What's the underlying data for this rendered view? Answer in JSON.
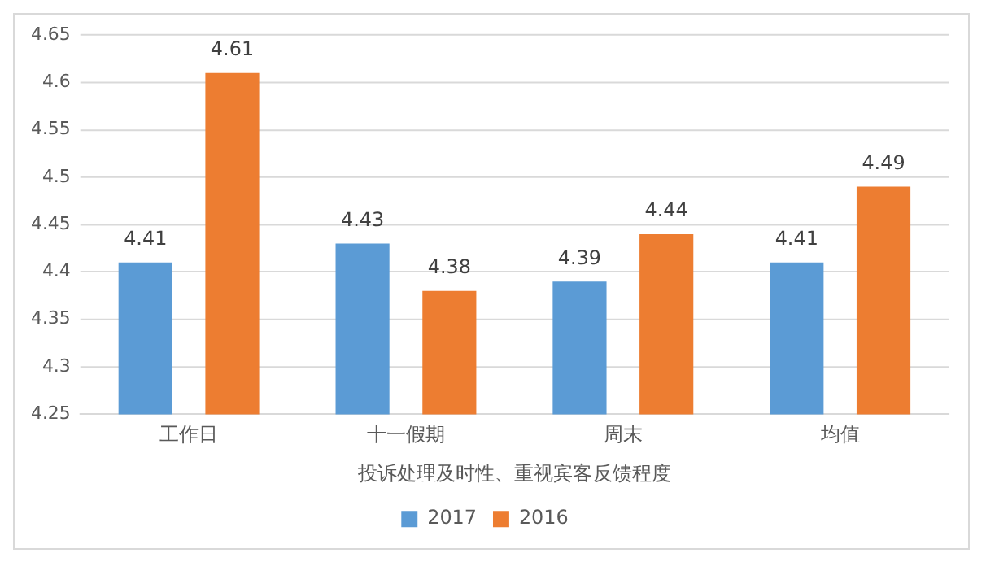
{
  "chart_data": {
    "type": "bar",
    "xlabel": "投诉处理及时性、重视宾客反馈程度",
    "categories": [
      "工作日",
      "十一假期",
      "周末",
      "均值"
    ],
    "series": [
      {
        "name": "2017",
        "color": "#5b9bd5",
        "values": [
          4.41,
          4.43,
          4.39,
          4.41
        ]
      },
      {
        "name": "2016",
        "color": "#ed7d31",
        "values": [
          4.61,
          4.38,
          4.44,
          4.49
        ]
      }
    ],
    "ylim": [
      4.25,
      4.65
    ],
    "yticks": [
      4.25,
      4.3,
      4.35,
      4.4,
      4.45,
      4.5,
      4.55,
      4.6,
      4.65
    ],
    "grid": "y",
    "legend": "bottom",
    "data_labels": true
  }
}
